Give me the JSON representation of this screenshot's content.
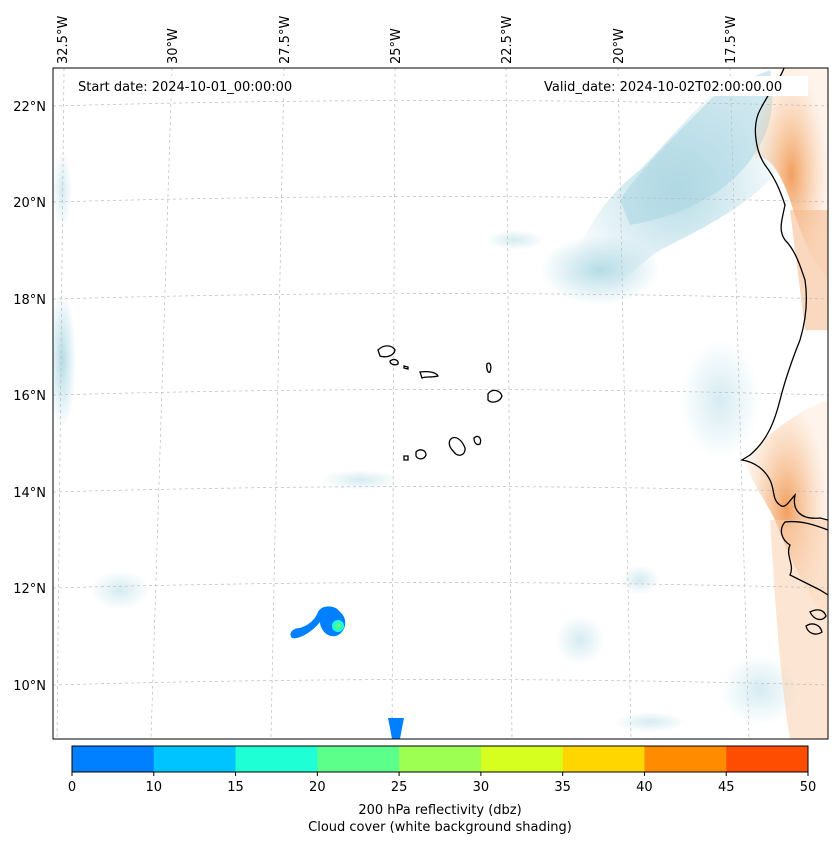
{
  "map": {
    "start_date": "Start date: 2024-10-01_00:00:00",
    "valid_date": "Valid_date: 2024-10-02T02:00:00.00",
    "lon_labels": [
      "32.5°W",
      "30°W",
      "27.5°W",
      "25°W",
      "22.5°W",
      "20°W",
      "17.5°W"
    ],
    "lat_labels": [
      "22°N",
      "20°N",
      "18°N",
      "16°N",
      "14°N",
      "12°N",
      "10°N"
    ],
    "colors": {
      "cloud": "#a9d6e2",
      "coast": "#000000",
      "land_warm": "#f4a76a",
      "grid": "#bbbbbb"
    }
  },
  "colorbar": {
    "ticks": [
      "0",
      "10",
      "15",
      "20",
      "25",
      "30",
      "35",
      "40",
      "45",
      "50"
    ],
    "colors": [
      "#0080ff",
      "#00c4ff",
      "#1fffd6",
      "#5cff8a",
      "#9cff52",
      "#d6ff1f",
      "#ffd600",
      "#ff8c00",
      "#ff4d00"
    ],
    "label_line1": "200 hPa reflectivity (dbz)",
    "label_line2": "Cloud cover (white background shading)"
  }
}
